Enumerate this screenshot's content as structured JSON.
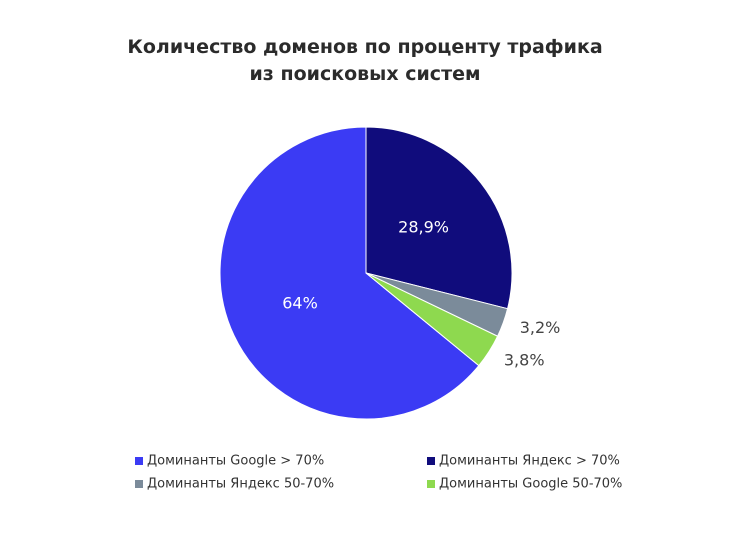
{
  "chart_data": {
    "type": "pie",
    "title": "Количество доменов по проценту трафика из поисковых систем",
    "categories": [
      "Доминанты Google > 70%",
      "Доминанты Яндекс > 70%",
      "Доминанты Яндекс 50-70%",
      "Доминанты Google 50-70%"
    ],
    "values": [
      64,
      28.9,
      3.2,
      3.8
    ],
    "value_labels": [
      "64%",
      "28,9%",
      "3,2%",
      "3,8%"
    ],
    "colors": [
      "#3b3bf4",
      "#100c7c",
      "#7b8b9a",
      "#8ed94f"
    ],
    "legend": "bottom"
  }
}
